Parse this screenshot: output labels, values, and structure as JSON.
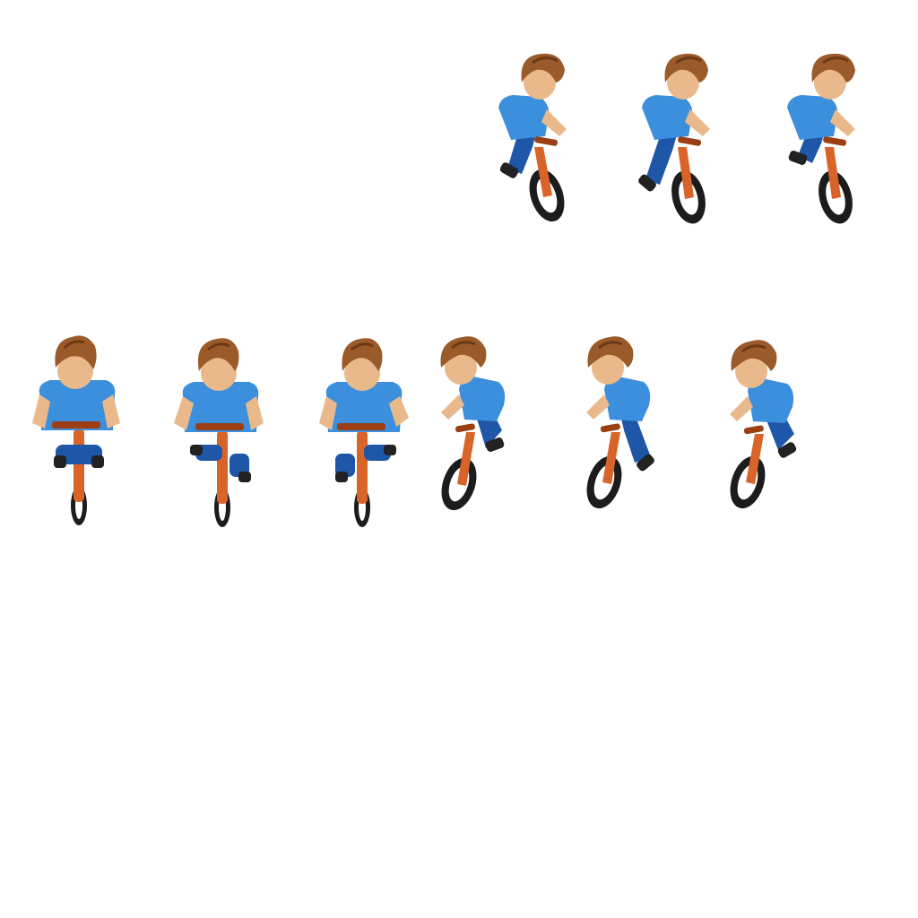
{
  "sprite_sheet": {
    "subject": "rider-on-bicycle",
    "background": "#ffffff",
    "colors": {
      "hair": "#9a5a2a",
      "hair_dark": "#6e3a16",
      "skin": "#e9b98c",
      "shirt": "#3c8fdc",
      "shirt_shade": "#2a6fb8",
      "pants": "#1e56a8",
      "shoe": "#222222",
      "frame": "#d8642a",
      "frame_dark": "#9c3f14",
      "tire": "#1c1c1c"
    },
    "frames": [
      {
        "pose": "front",
        "step": 1
      },
      {
        "pose": "front",
        "step": 2
      },
      {
        "pose": "front",
        "step": 3
      },
      {
        "pose": "front-left",
        "step": 1
      },
      {
        "pose": "front-left",
        "step": 2
      },
      {
        "pose": "front-left",
        "step": 3
      },
      {
        "pose": "front-right",
        "step": 1
      },
      {
        "pose": "front-right",
        "step": 2
      },
      {
        "pose": "front-right",
        "step": 3
      }
    ]
  }
}
